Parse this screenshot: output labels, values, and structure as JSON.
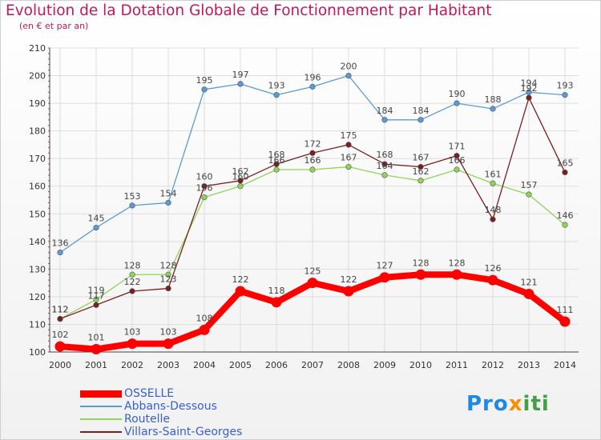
{
  "chart_data": {
    "type": "line",
    "title": "Evolution de la Dotation Globale de Fonctionnement par Habitant",
    "subtitle": "(en € et par an)",
    "xlabel": "",
    "ylabel": "",
    "x": [
      "2000",
      "2001",
      "2002",
      "2003",
      "2004",
      "2005",
      "2006",
      "2007",
      "2008",
      "2009",
      "2010",
      "2011",
      "2012",
      "2013",
      "2014"
    ],
    "ylim": [
      100,
      210
    ],
    "yticks": [
      "100",
      "110",
      "120",
      "130",
      "140",
      "150",
      "160",
      "170",
      "180",
      "190",
      "200",
      "210"
    ],
    "grid": true,
    "legend_position": "bottom-left",
    "series": [
      {
        "name": "Abbans-Dessous",
        "color": "#5b9bd5",
        "values": [
          136,
          145,
          153,
          154,
          195,
          197,
          193,
          196,
          200,
          184,
          184,
          190,
          188,
          194,
          193
        ],
        "labels": [
          "136",
          "145",
          "153",
          "154",
          "195",
          "197",
          "193",
          "196",
          "200",
          "184",
          "184",
          "190",
          "188",
          "194",
          "193"
        ]
      },
      {
        "name": "Routelle",
        "color": "#8fd45a",
        "values": [
          112,
          119,
          128,
          128,
          156,
          160,
          166,
          166,
          167,
          164,
          162,
          166,
          161,
          157,
          146
        ],
        "labels": [
          "112",
          "119",
          "128",
          "128",
          "156",
          "160",
          "166",
          "166",
          "167",
          "164",
          "162",
          "166",
          "161",
          "157",
          "146"
        ]
      },
      {
        "name": "Villars-Saint-Georges",
        "color": "#7a1f1f",
        "values": [
          112,
          117,
          122,
          123,
          160,
          162,
          168,
          172,
          175,
          168,
          167,
          171,
          148,
          192,
          165
        ],
        "labels": [
          "112",
          "117",
          "122",
          "123",
          "160",
          "162",
          "168",
          "172",
          "175",
          "168",
          "167",
          "171",
          "148",
          "192",
          "165"
        ]
      },
      {
        "name": "OSSELLE",
        "color": "#ff0000",
        "values": [
          102,
          101,
          103,
          103,
          108,
          122,
          118,
          125,
          122,
          127,
          128,
          128,
          126,
          121,
          111
        ],
        "labels": [
          "102",
          "101",
          "103",
          "103",
          "108",
          "122",
          "118",
          "125",
          "122",
          "127",
          "128",
          "128",
          "126",
          "121",
          "111"
        ]
      }
    ],
    "legend_order": [
      "OSSELLE",
      "Abbans-Dessous",
      "Routelle",
      "Villars-Saint-Georges"
    ]
  },
  "logo": {
    "part1": "Pro",
    "part2": "x",
    "part3": "iti"
  }
}
